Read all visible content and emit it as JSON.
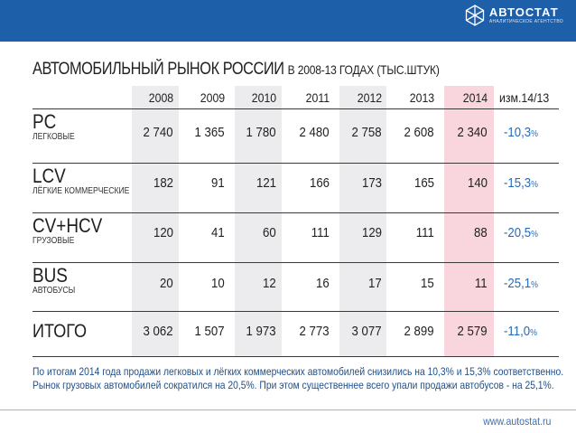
{
  "brand": {
    "name": "АВТОСТАТ",
    "subtitle": "АНАЛИТИЧЕСКОЕ АГЕНТСТВО"
  },
  "title": {
    "main": "АВТОМОБИЛЬНЫЙ РЫНОК РОССИИ",
    "sub": "В 2008-13 ГОДАХ (ТЫС.ШТУК)"
  },
  "columns": [
    "2008",
    "2009",
    "2010",
    "2011",
    "2012",
    "2013",
    "2014",
    "изм.14/13"
  ],
  "highlight_column": "2014",
  "rows": [
    {
      "label": "PC",
      "sublabel": "ЛЕГКОВЫЕ",
      "values": [
        "2 740",
        "1 365",
        "1 780",
        "2 480",
        "2 758",
        "2 608",
        "2 340"
      ],
      "change": "-10,3",
      "unit": "%"
    },
    {
      "label": "LCV",
      "sublabel": "ЛЁГКИЕ КОММЕРЧЕСКИЕ",
      "values": [
        "182",
        "91",
        "121",
        "166",
        "173",
        "165",
        "140"
      ],
      "change": "-15,3",
      "unit": "%"
    },
    {
      "label": "CV+HCV",
      "sublabel": "ГРУЗОВЫЕ",
      "values": [
        "120",
        "41",
        "60",
        "111",
        "129",
        "111",
        "88"
      ],
      "change": "-20,5",
      "unit": "%"
    },
    {
      "label": "BUS",
      "sublabel": "АВТОБУСЫ",
      "values": [
        "20",
        "10",
        "12",
        "16",
        "17",
        "15",
        "11"
      ],
      "change": "-25,1",
      "unit": "%"
    },
    {
      "label": "ИТОГО",
      "sublabel": "",
      "values": [
        "3 062",
        "1 507",
        "1 973",
        "2 773",
        "3 077",
        "2 899",
        "2 579"
      ],
      "change": "-11,0",
      "unit": "%"
    }
  ],
  "footnote": {
    "line1": "По итогам 2014 года продажи легковых и лёгких коммерческих автомобилей снизились на 10,3% и 15,3% соответственно.",
    "line2": "Рынок грузовых автомобилей сократился на 20,5%. При этом существеннее всего упали продажи автобусов - на 25,1%."
  },
  "url": "www.autostat.ru",
  "colors": {
    "accent": "#1e5fa9",
    "change": "#2a6bb8",
    "highlight": "#f9d6dd",
    "shade": "#ecebed"
  }
}
